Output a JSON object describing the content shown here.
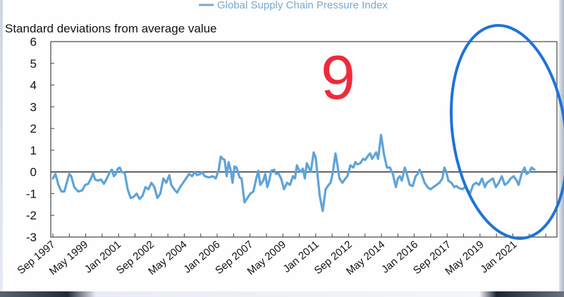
{
  "chart_data": {
    "type": "line",
    "title": "",
    "legend": {
      "entries": [
        "Global Supply Chain Pressure Index"
      ],
      "placement": "top-right"
    },
    "ylabel": "Standard deviations from average value",
    "xlabel": "",
    "ylim": [
      -3,
      6
    ],
    "yticks": [
      6,
      5,
      4,
      3,
      2,
      1,
      0,
      -1,
      -2,
      -3
    ],
    "xlim": [
      1997.5,
      2022.3
    ],
    "xticks": [
      {
        "label": "Sep 1997",
        "x": 1997.67
      },
      {
        "label": "May 1999",
        "x": 1999.33
      },
      {
        "label": "Jan 2001",
        "x": 2001.0
      },
      {
        "label": "Sep 2002",
        "x": 2002.67
      },
      {
        "label": "May 2004",
        "x": 2004.33
      },
      {
        "label": "Jan 2006",
        "x": 2006.0
      },
      {
        "label": "Sep 2007",
        "x": 2007.67
      },
      {
        "label": "May 2009",
        "x": 2009.33
      },
      {
        "label": "Jan 2011",
        "x": 2011.0
      },
      {
        "label": "Sep 2012",
        "x": 2012.67
      },
      {
        "label": "May 2014",
        "x": 2014.33
      },
      {
        "label": "Jan 2016",
        "x": 2016.0
      },
      {
        "label": "Sep 2017",
        "x": 2017.67
      },
      {
        "label": "May 2019",
        "x": 2019.33
      },
      {
        "label": "Jan 2021",
        "x": 2021.0
      }
    ],
    "zero_line": true,
    "grid": false,
    "series": [
      {
        "name": "Global Supply Chain Pressure Index",
        "color": "#5fa3d8",
        "points": [
          [
            1997.67,
            -0.3
          ],
          [
            1997.8,
            -0.1
          ],
          [
            1997.95,
            -0.6
          ],
          [
            1998.1,
            -0.9
          ],
          [
            1998.25,
            -0.9
          ],
          [
            1998.4,
            -0.4
          ],
          [
            1998.5,
            -0.1
          ],
          [
            1998.6,
            -0.2
          ],
          [
            1998.75,
            -0.7
          ],
          [
            1998.95,
            -0.9
          ],
          [
            1999.15,
            -0.85
          ],
          [
            1999.3,
            -0.6
          ],
          [
            1999.45,
            -0.55
          ],
          [
            1999.6,
            -0.3
          ],
          [
            1999.7,
            -0.05
          ],
          [
            1999.8,
            -0.35
          ],
          [
            1999.95,
            -0.4
          ],
          [
            2000.1,
            -0.35
          ],
          [
            2000.25,
            -0.55
          ],
          [
            2000.4,
            -0.3
          ],
          [
            2000.55,
            0.0
          ],
          [
            2000.65,
            0.1
          ],
          [
            2000.75,
            -0.2
          ],
          [
            2000.85,
            -0.1
          ],
          [
            2000.95,
            0.15
          ],
          [
            2001.05,
            0.2
          ],
          [
            2001.15,
            0.0
          ],
          [
            2001.3,
            -0.05
          ],
          [
            2001.45,
            -0.8
          ],
          [
            2001.6,
            -1.2
          ],
          [
            2001.75,
            -1.15
          ],
          [
            2001.9,
            -1.0
          ],
          [
            2002.05,
            -1.25
          ],
          [
            2002.2,
            -1.1
          ],
          [
            2002.35,
            -0.7
          ],
          [
            2002.5,
            -0.8
          ],
          [
            2002.65,
            -0.5
          ],
          [
            2002.8,
            -0.7
          ],
          [
            2002.95,
            -1.2
          ],
          [
            2003.1,
            -1.0
          ],
          [
            2003.25,
            -0.3
          ],
          [
            2003.4,
            -0.5
          ],
          [
            2003.55,
            -0.15
          ],
          [
            2003.65,
            -0.6
          ],
          [
            2003.8,
            -0.8
          ],
          [
            2003.95,
            -0.95
          ],
          [
            2004.1,
            -0.7
          ],
          [
            2004.25,
            -0.5
          ],
          [
            2004.4,
            -0.3
          ],
          [
            2004.55,
            -0.1
          ],
          [
            2004.7,
            -0.2
          ],
          [
            2004.85,
            0.0
          ],
          [
            2004.95,
            -0.15
          ],
          [
            2005.1,
            -0.1
          ],
          [
            2005.2,
            0.0
          ],
          [
            2005.35,
            -0.2
          ],
          [
            2005.55,
            -0.25
          ],
          [
            2005.75,
            -0.2
          ],
          [
            2005.9,
            -0.3
          ],
          [
            2006.05,
            0.1
          ],
          [
            2006.15,
            0.7
          ],
          [
            2006.25,
            0.6
          ],
          [
            2006.35,
            0.55
          ],
          [
            2006.45,
            -0.2
          ],
          [
            2006.55,
            0.45
          ],
          [
            2006.65,
            0.1
          ],
          [
            2006.75,
            -0.5
          ],
          [
            2006.85,
            0.25
          ],
          [
            2006.95,
            0.2
          ],
          [
            2007.1,
            -0.25
          ],
          [
            2007.2,
            -0.3
          ],
          [
            2007.35,
            -1.4
          ],
          [
            2007.5,
            -1.2
          ],
          [
            2007.65,
            -1.0
          ],
          [
            2007.8,
            -0.9
          ],
          [
            2007.95,
            -0.3
          ],
          [
            2008.05,
            0.05
          ],
          [
            2008.15,
            -0.6
          ],
          [
            2008.3,
            -0.4
          ],
          [
            2008.4,
            -0.1
          ],
          [
            2008.5,
            -0.7
          ],
          [
            2008.6,
            -0.4
          ],
          [
            2008.7,
            0.05
          ],
          [
            2008.85,
            0.1
          ],
          [
            2008.95,
            -0.1
          ],
          [
            2009.05,
            -0.05
          ],
          [
            2009.2,
            -0.3
          ],
          [
            2009.35,
            -0.8
          ],
          [
            2009.5,
            -0.5
          ],
          [
            2009.65,
            -0.6
          ],
          [
            2009.8,
            -0.2
          ],
          [
            2009.9,
            -0.3
          ],
          [
            2010.0,
            0.3
          ],
          [
            2010.1,
            0.1
          ],
          [
            2010.2,
            0.0
          ],
          [
            2010.3,
            0.15
          ],
          [
            2010.4,
            -0.3
          ],
          [
            2010.5,
            0.4
          ],
          [
            2010.6,
            0.2
          ],
          [
            2010.7,
            0.0
          ],
          [
            2010.85,
            0.9
          ],
          [
            2010.95,
            0.65
          ],
          [
            2011.05,
            -0.2
          ],
          [
            2011.15,
            -1.1
          ],
          [
            2011.3,
            -1.8
          ],
          [
            2011.45,
            -0.8
          ],
          [
            2011.6,
            -0.6
          ],
          [
            2011.7,
            -0.5
          ],
          [
            2011.8,
            -0.1
          ],
          [
            2011.95,
            0.85
          ],
          [
            2012.05,
            0.3
          ],
          [
            2012.15,
            -0.3
          ],
          [
            2012.3,
            -0.5
          ],
          [
            2012.45,
            -0.3
          ],
          [
            2012.55,
            -0.2
          ],
          [
            2012.7,
            0.3
          ],
          [
            2012.85,
            0.2
          ],
          [
            2012.95,
            0.45
          ],
          [
            2013.05,
            0.35
          ],
          [
            2013.2,
            0.4
          ],
          [
            2013.35,
            0.6
          ],
          [
            2013.45,
            0.55
          ],
          [
            2013.6,
            0.75
          ],
          [
            2013.7,
            0.85
          ],
          [
            2013.8,
            0.6
          ],
          [
            2013.9,
            0.75
          ],
          [
            2014.0,
            0.9
          ],
          [
            2014.1,
            0.6
          ],
          [
            2014.25,
            1.7
          ],
          [
            2014.4,
            0.8
          ],
          [
            2014.55,
            0.2
          ],
          [
            2014.7,
            0.2
          ],
          [
            2014.85,
            -0.1
          ],
          [
            2015.0,
            -0.7
          ],
          [
            2015.1,
            -0.3
          ],
          [
            2015.2,
            -0.2
          ],
          [
            2015.3,
            -0.4
          ],
          [
            2015.45,
            0.2
          ],
          [
            2015.55,
            -0.1
          ],
          [
            2015.7,
            -0.6
          ],
          [
            2015.85,
            -0.65
          ],
          [
            2016.0,
            -0.2
          ],
          [
            2016.1,
            -0.1
          ],
          [
            2016.2,
            0.1
          ],
          [
            2016.3,
            -0.1
          ],
          [
            2016.45,
            -0.5
          ],
          [
            2016.6,
            -0.7
          ],
          [
            2016.75,
            -0.8
          ],
          [
            2016.9,
            -0.7
          ],
          [
            2017.05,
            -0.6
          ],
          [
            2017.2,
            -0.5
          ],
          [
            2017.35,
            -0.3
          ],
          [
            2017.45,
            0.2
          ],
          [
            2017.55,
            0.0
          ],
          [
            2017.65,
            -0.4
          ],
          [
            2017.8,
            -0.5
          ],
          [
            2017.95,
            -0.7
          ],
          [
            2018.05,
            -0.65
          ],
          [
            2018.2,
            -0.75
          ],
          [
            2018.35,
            -0.8
          ],
          [
            2018.5,
            -0.7
          ],
          [
            2018.6,
            -0.8
          ],
          [
            2018.75,
            -1.0
          ],
          [
            2018.9,
            -0.6
          ],
          [
            2019.05,
            -0.5
          ],
          [
            2019.2,
            -0.6
          ],
          [
            2019.35,
            -0.3
          ],
          [
            2019.5,
            -0.7
          ],
          [
            2019.6,
            -0.5
          ],
          [
            2019.75,
            -0.4
          ],
          [
            2019.9,
            -0.3
          ],
          [
            2020.05,
            -0.7
          ],
          [
            2020.2,
            -0.5
          ],
          [
            2020.35,
            -0.2
          ],
          [
            2020.5,
            -0.6
          ],
          [
            2020.65,
            -0.5
          ],
          [
            2020.8,
            -0.3
          ],
          [
            2020.95,
            -0.2
          ],
          [
            2021.1,
            -0.4
          ],
          [
            2021.2,
            -0.6
          ],
          [
            2021.35,
            -0.1
          ],
          [
            2021.5,
            0.2
          ],
          [
            2021.6,
            -0.1
          ],
          [
            2021.75,
            0.0
          ],
          [
            2021.85,
            0.2
          ],
          [
            2022.0,
            0.1
          ]
        ]
      }
    ],
    "annotations": [
      {
        "type": "text",
        "text": "9",
        "color": "#ee2b3d"
      },
      {
        "type": "ellipse",
        "color": "#1f73d6",
        "highlights": "Sep 2017 – end of series"
      }
    ]
  }
}
